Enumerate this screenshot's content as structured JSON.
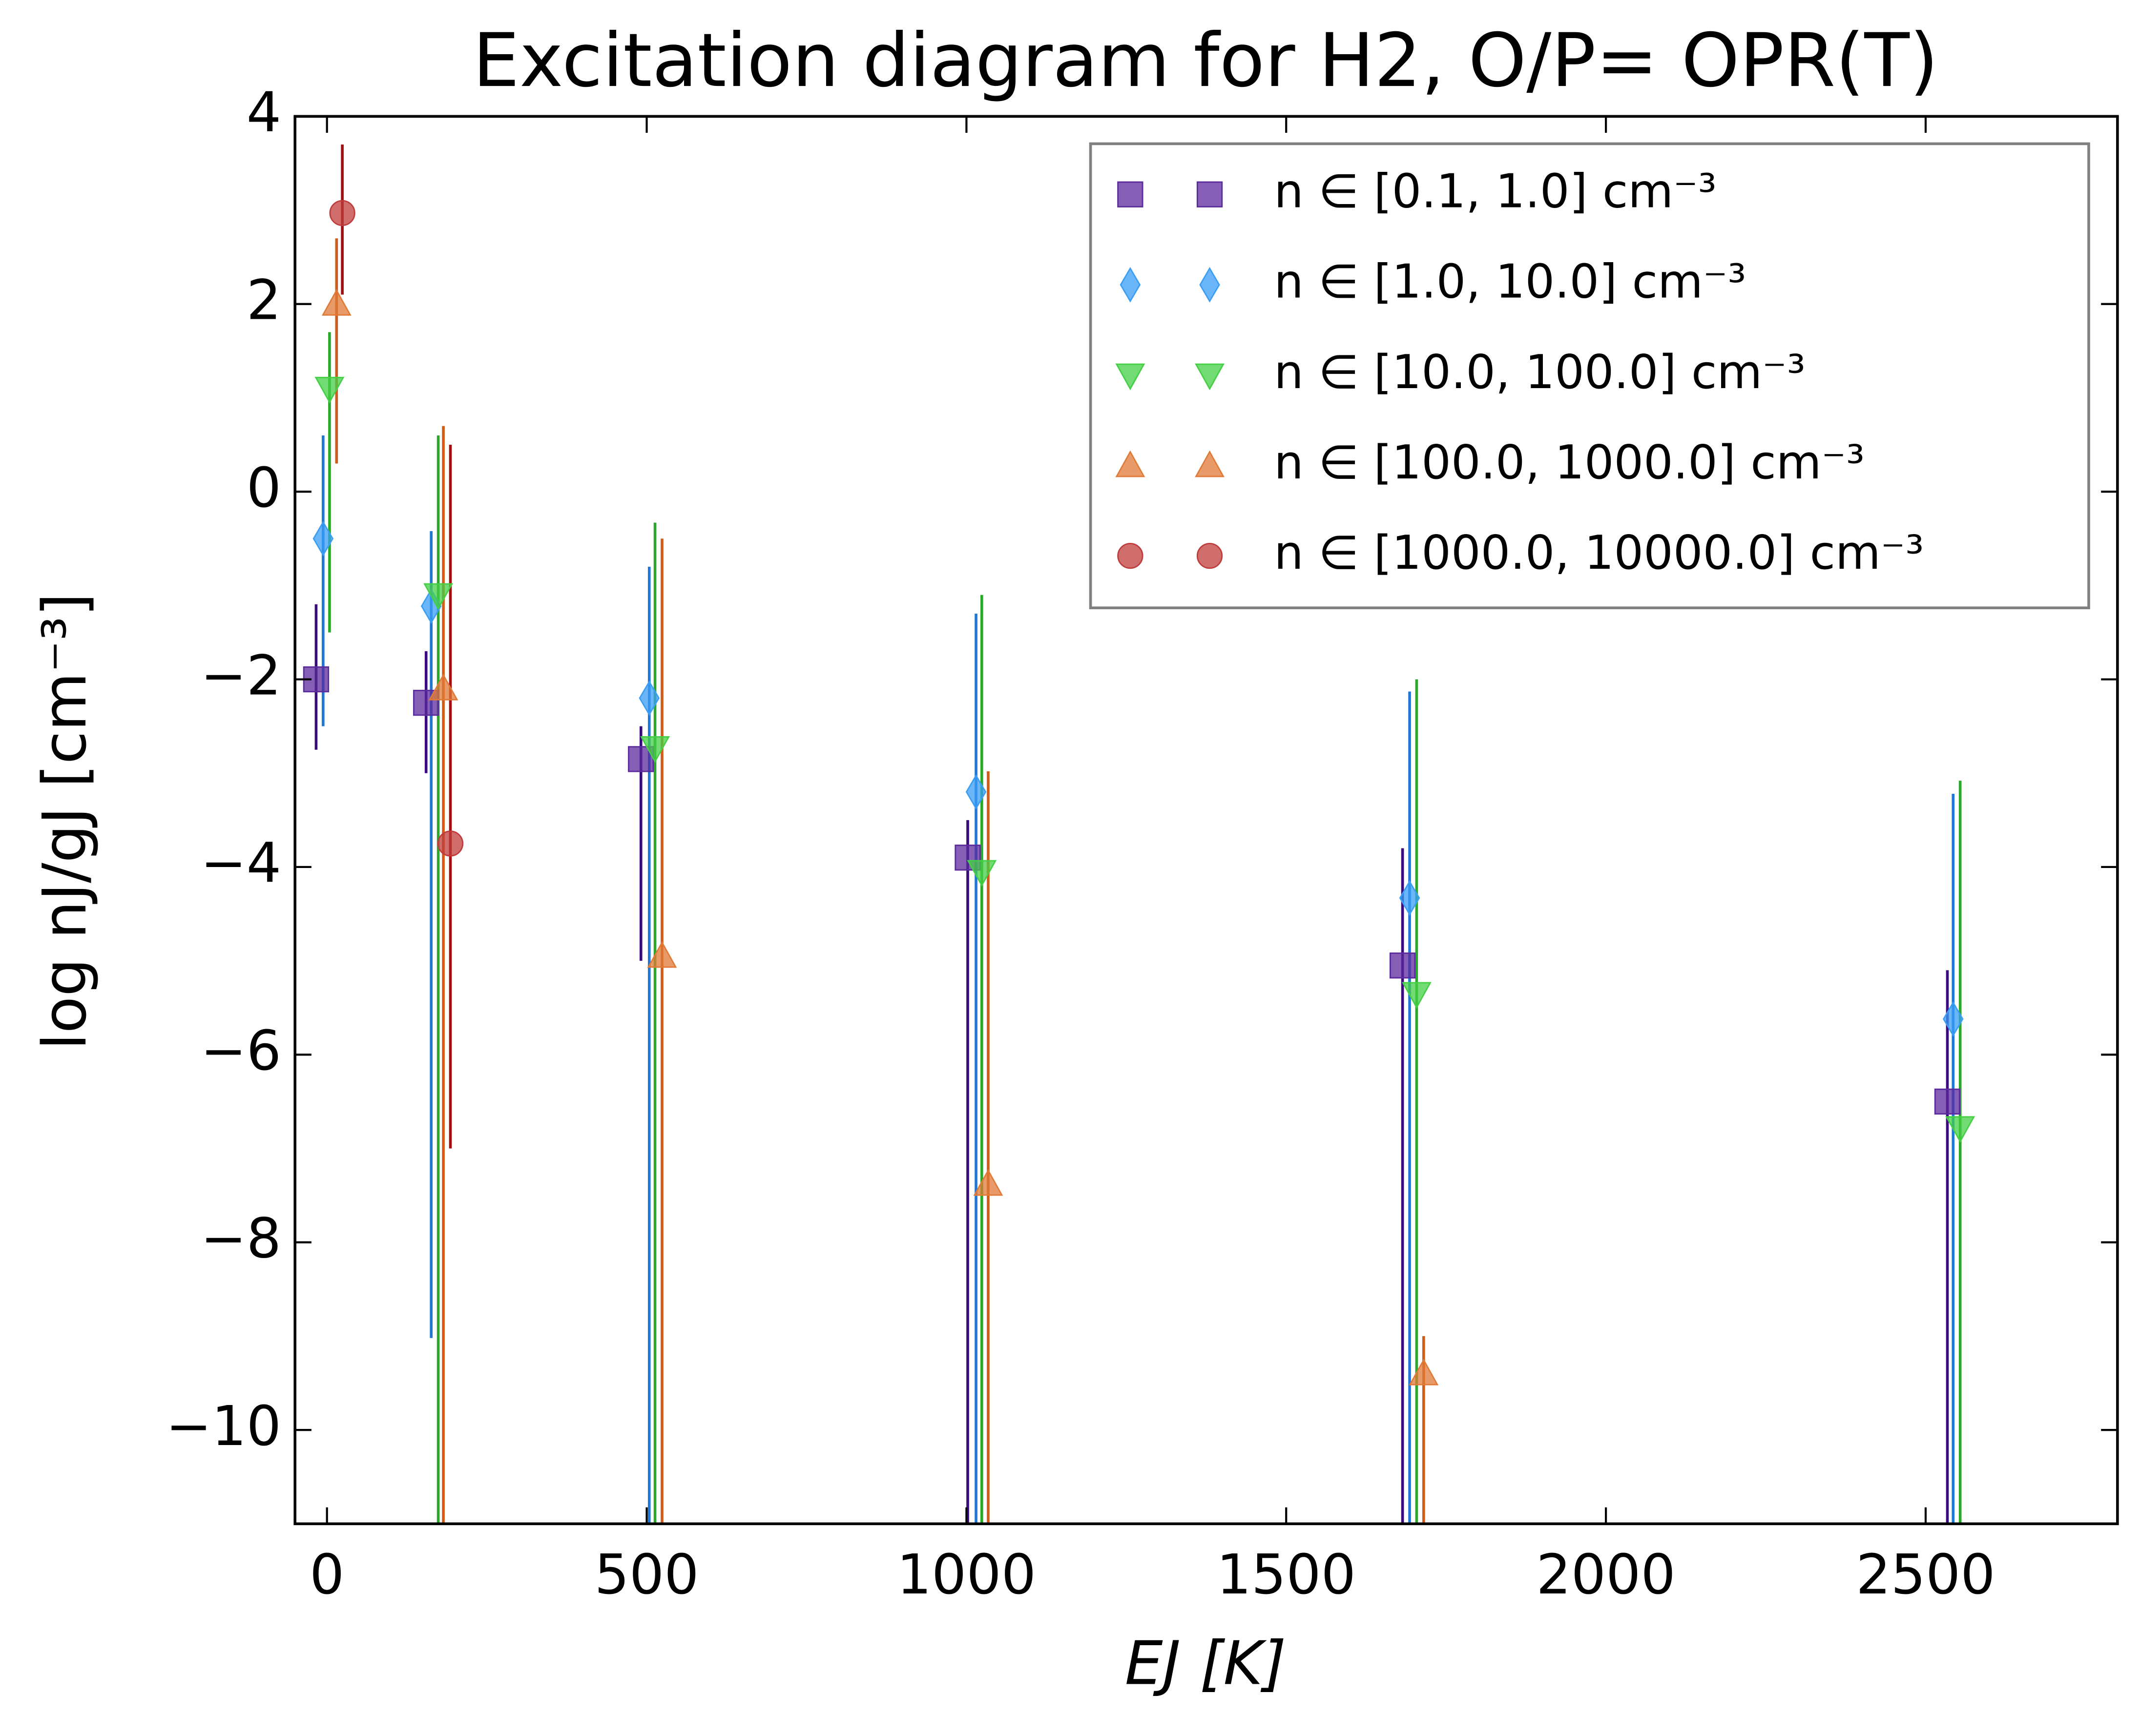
{
  "chart_data": {
    "type": "scatter",
    "title": "Excitation diagram for H2, O/P= OPR(T)",
    "xlabel": "EJ [K]",
    "ylabel": "log nJ/gJ [cm⁻³]",
    "xlim": [
      -50,
      2800
    ],
    "ylim": [
      -11,
      4
    ],
    "xticks": [
      0,
      500,
      1000,
      1500,
      2000,
      2500
    ],
    "yticks": [
      {
        "value": -10,
        "label": "−10"
      },
      {
        "value": -8,
        "label": "−8"
      },
      {
        "value": -6,
        "label": "−6"
      },
      {
        "value": -4,
        "label": "−4"
      },
      {
        "value": -2,
        "label": "−2"
      },
      0,
      2,
      4
    ],
    "legend": "upper right",
    "series": [
      {
        "name": "n ∈ [0.1, 1.0] cm⁻³",
        "marker": "square",
        "color": "#5b2a9c",
        "errcolor": "#3a0c7a",
        "x": [
          -17,
          155,
          491,
          1002,
          1682,
          2534
        ],
        "values": [
          -2,
          -2.25,
          -2.85,
          -3.9,
          -5.05,
          -6.5
        ],
        "yerr_minus": [
          0.75,
          0.75,
          2.15,
          8,
          7,
          6
        ],
        "yerr_plus": [
          0.8,
          0.55,
          0.35,
          0.4,
          1.25,
          1.4
        ]
      },
      {
        "name": "n ∈ [1.0, 10.0] cm⁻³",
        "marker": "diamond",
        "color": "#3a9ef5",
        "errcolor": "#1f78d8",
        "x": [
          -6,
          163,
          504,
          1015,
          1693,
          2543
        ],
        "values": [
          -0.5,
          -1.22,
          -2.2,
          -3.2,
          -4.33,
          -5.62
        ],
        "yerr_minus": [
          2,
          7.8,
          9,
          8,
          7,
          6
        ],
        "yerr_plus": [
          1.1,
          0.8,
          1.4,
          1.9,
          2.2,
          2.4
        ]
      },
      {
        "name": "n ∈ [10.0, 100.0] cm⁻³",
        "marker": "triangle-down",
        "color": "#44cf44",
        "errcolor": "#2aa82a",
        "x": [
          4,
          174,
          513,
          1024,
          1704,
          2554
        ],
        "values": [
          1.1,
          -1.1,
          -2.73,
          -4.05,
          -5.35,
          -6.78
        ],
        "yerr_minus": [
          2.6,
          10,
          9,
          7,
          6,
          5
        ],
        "yerr_plus": [
          0.6,
          1.7,
          2.4,
          2.95,
          3.35,
          3.7
        ]
      },
      {
        "name": "n ∈ [100.0, 1000.0] cm⁻³",
        "marker": "triangle-up",
        "color": "#e07a36",
        "errcolor": "#d05c18",
        "x": [
          15,
          182,
          524,
          1034,
          1715
        ],
        "values": [
          2.0,
          -2.1,
          -4.95,
          -7.38,
          -9.4
        ],
        "yerr_minus": [
          1.7,
          9,
          7,
          4,
          2
        ],
        "yerr_plus": [
          0.7,
          2.8,
          4.45,
          4.4,
          0.4
        ]
      },
      {
        "name": "n ∈ [1000.0, 10000.0] cm⁻³",
        "marker": "circle",
        "color": "#c03c3c",
        "errcolor": "#a01010",
        "x": [
          24,
          193
        ],
        "values": [
          2.97,
          -3.75
        ],
        "yerr_minus": [
          0.87,
          3.25
        ],
        "yerr_plus": [
          0.73,
          4.25
        ]
      }
    ]
  }
}
